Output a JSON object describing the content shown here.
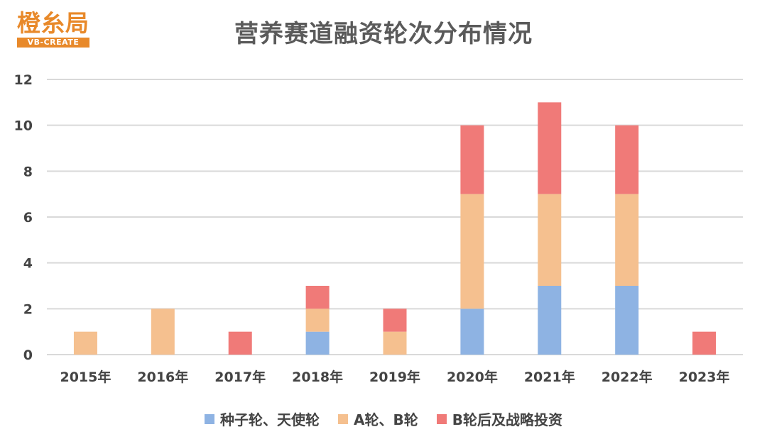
{
  "logo": {
    "main": "橙糸局",
    "sub": "VB-CREATE"
  },
  "colors": {
    "seed": "#8eb3e3",
    "ab": "#f5c08f",
    "late": "#f07a78",
    "grid": "#d9d9d9",
    "text": "#444444"
  },
  "chart_data": {
    "type": "bar",
    "stacked": true,
    "title": "营养赛道融资轮次分布情况",
    "xlabel": "",
    "ylabel": "",
    "categories": [
      "2015年",
      "2016年",
      "2017年",
      "2018年",
      "2019年",
      "2020年",
      "2021年",
      "2022年",
      "2023年"
    ],
    "series": [
      {
        "name": "种子轮、天使轮",
        "color": "#8eb3e3",
        "values": [
          0,
          0,
          0,
          1,
          0,
          2,
          3,
          3,
          0
        ]
      },
      {
        "name": "A轮、B轮",
        "color": "#f5c08f",
        "values": [
          1,
          2,
          0,
          1,
          1,
          5,
          4,
          4,
          0
        ]
      },
      {
        "name": "B轮后及战略投资",
        "color": "#f07a78",
        "values": [
          0,
          0,
          1,
          1,
          1,
          3,
          4,
          3,
          1
        ]
      }
    ],
    "ylim": [
      0,
      12
    ],
    "yticks": [
      0,
      2,
      4,
      6,
      8,
      10,
      12
    ],
    "grid": true,
    "legend_position": "bottom"
  }
}
